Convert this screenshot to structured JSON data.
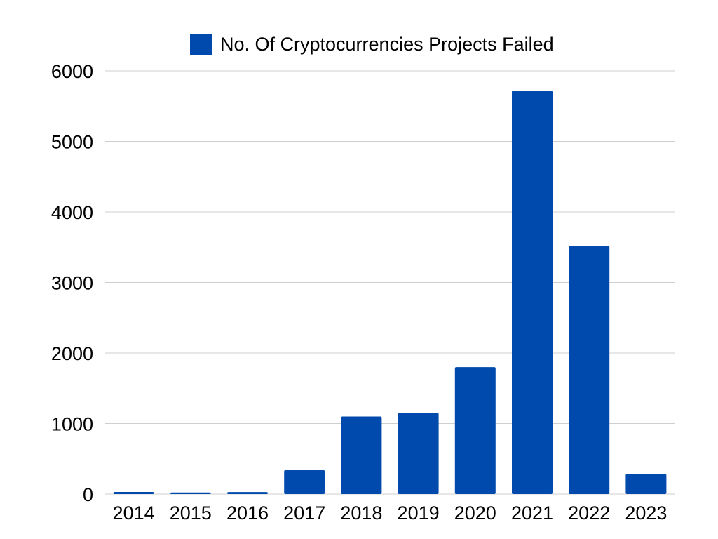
{
  "chart_data": {
    "type": "bar",
    "categories": [
      "2014",
      "2015",
      "2016",
      "2017",
      "2018",
      "2019",
      "2020",
      "2021",
      "2022",
      "2023"
    ],
    "series": [
      {
        "name": "No. Of Cryptocurrencies Projects Failed",
        "values": [
          30,
          22,
          28,
          340,
          1100,
          1150,
          1800,
          5720,
          3520,
          285
        ],
        "color": "#004aad"
      }
    ],
    "ylim": [
      0,
      6000
    ],
    "yticks": [
      0,
      1000,
      2000,
      3000,
      4000,
      5000,
      6000
    ],
    "title": "",
    "xlabel": "",
    "ylabel": "",
    "grid": true,
    "legend_position": "top"
  }
}
